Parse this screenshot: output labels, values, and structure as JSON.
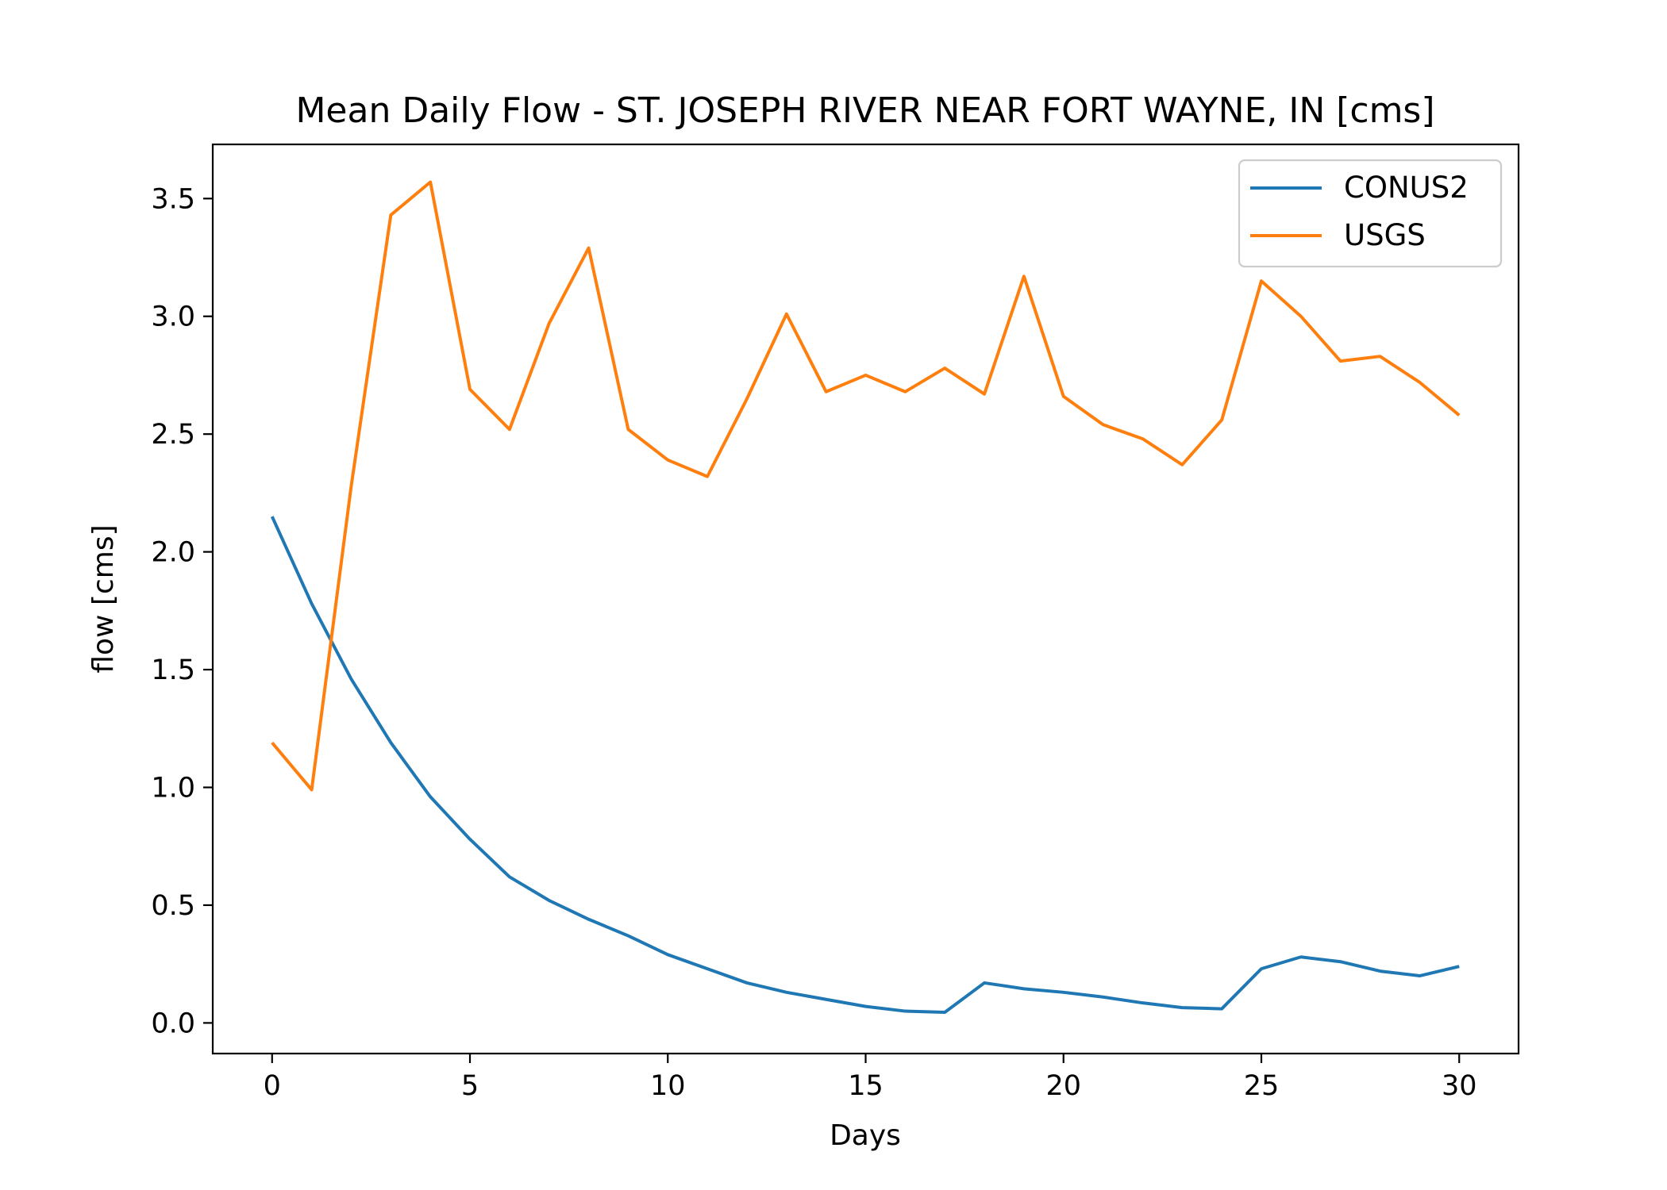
{
  "chart_data": {
    "type": "line",
    "title": "Mean Daily Flow - ST. JOSEPH RIVER NEAR FORT WAYNE, IN [cms]",
    "xlabel": "Days",
    "ylabel": "flow [cms]",
    "xlim": [
      -1.5,
      31.5
    ],
    "ylim": [
      -0.13,
      3.73
    ],
    "xticks": [
      0,
      5,
      10,
      15,
      20,
      25,
      30
    ],
    "yticks": [
      0.0,
      0.5,
      1.0,
      1.5,
      2.0,
      2.5,
      3.0,
      3.5
    ],
    "x": [
      0,
      1,
      2,
      3,
      4,
      5,
      6,
      7,
      8,
      9,
      10,
      11,
      12,
      13,
      14,
      15,
      16,
      17,
      18,
      19,
      20,
      21,
      22,
      23,
      24,
      25,
      26,
      27,
      28,
      29,
      30
    ],
    "legend_position": "upper right",
    "grid": false,
    "series": [
      {
        "name": "CONUS2",
        "color": "#1f77b4",
        "values": [
          2.15,
          1.78,
          1.46,
          1.19,
          0.96,
          0.78,
          0.62,
          0.52,
          0.44,
          0.37,
          0.29,
          0.23,
          0.17,
          0.13,
          0.1,
          0.07,
          0.05,
          0.045,
          0.17,
          0.145,
          0.13,
          0.11,
          0.085,
          0.065,
          0.06,
          0.23,
          0.28,
          0.26,
          0.22,
          0.2,
          0.24
        ]
      },
      {
        "name": "USGS",
        "color": "#ff7f0e",
        "values": [
          1.19,
          0.99,
          2.28,
          3.43,
          3.57,
          2.69,
          2.52,
          2.97,
          3.29,
          2.52,
          2.39,
          2.32,
          2.65,
          3.01,
          2.68,
          2.75,
          2.68,
          2.78,
          2.67,
          3.17,
          2.66,
          2.54,
          2.48,
          2.37,
          2.56,
          3.15,
          3.0,
          2.81,
          2.83,
          2.72,
          2.58
        ]
      }
    ]
  }
}
